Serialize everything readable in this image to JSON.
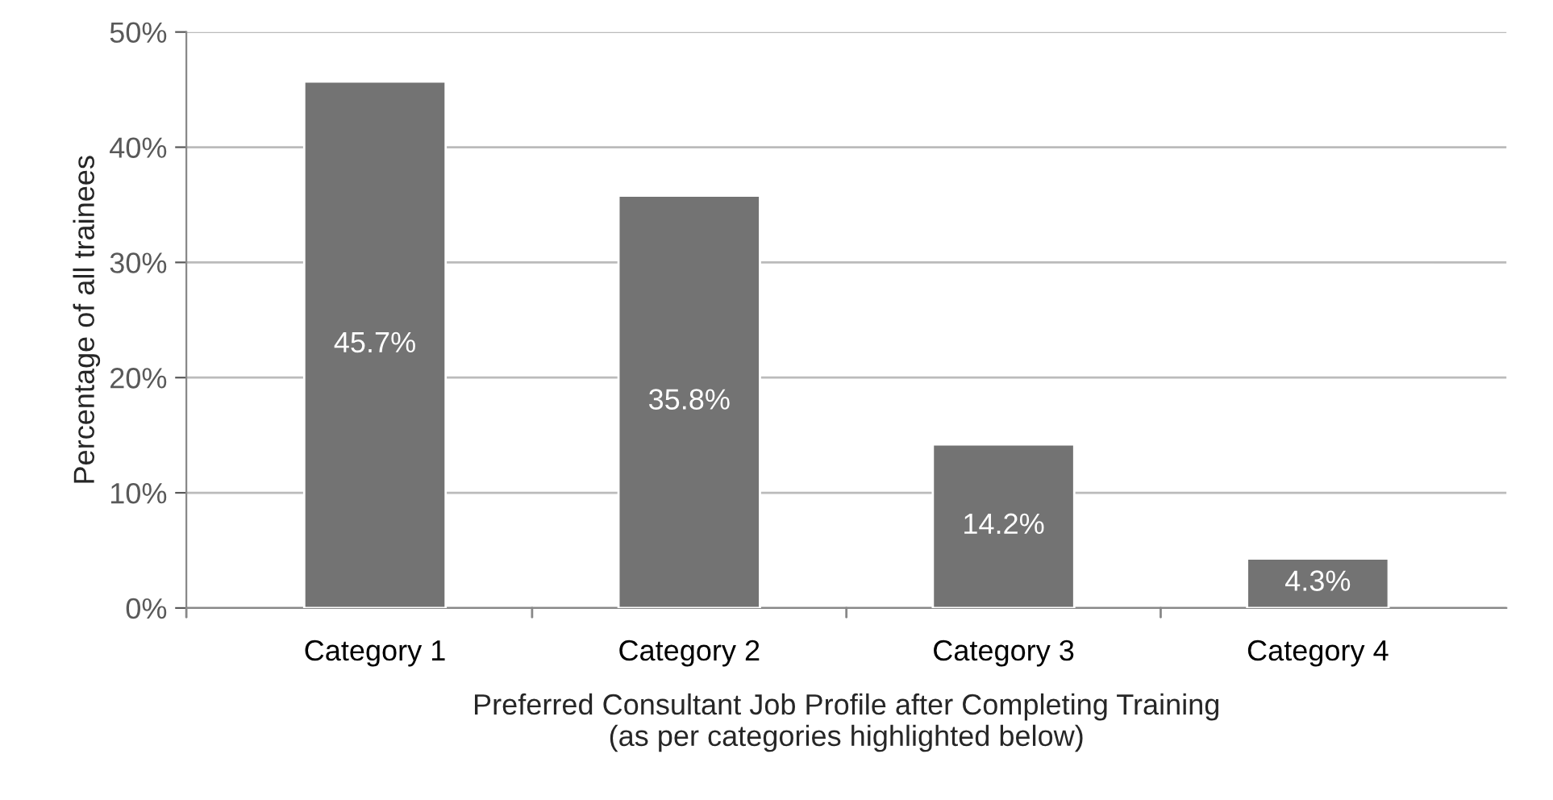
{
  "chart_data": {
    "type": "bar",
    "xlabel": "Preferred Consultant Job Profile after Completing Training\n(as per categories highlighted below)",
    "ylabel": "Percentage of all trainees",
    "categories": [
      "Category 1",
      "Category 2",
      "Category 3",
      "Category 4"
    ],
    "values": [
      45.7,
      35.8,
      14.2,
      4.3
    ],
    "value_labels": [
      "45.7%",
      "35.8%",
      "14.2%",
      "4.3%"
    ],
    "color": "#737373",
    "ylim": [
      0,
      50
    ],
    "yticks": [
      {
        "value": 0,
        "label": "0%"
      },
      {
        "value": 10,
        "label": "10%"
      },
      {
        "value": 20,
        "label": "20%"
      },
      {
        "value": 30,
        "label": "30%"
      },
      {
        "value": 40,
        "label": "40%"
      },
      {
        "value": 50,
        "label": "50%"
      }
    ],
    "grid": "y"
  }
}
